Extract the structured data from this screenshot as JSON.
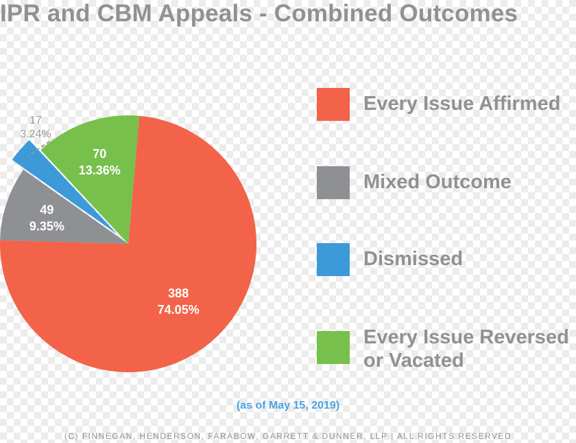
{
  "chart_data": {
    "type": "pie",
    "title": "IPR and CBM Appeals - Combined Outcomes",
    "slices": [
      {
        "name": "Every Issue Affirmed",
        "value": 388,
        "percent": "74.05%",
        "color": "#f26349"
      },
      {
        "name": "Mixed Outcome",
        "value": 49,
        "percent": "9.35%",
        "color": "#8e9093"
      },
      {
        "name": "Dismissed",
        "value": 17,
        "percent": "3.24%",
        "color": "#3c9ad8"
      },
      {
        "name": "Every Issue Reversed or Vacated",
        "value": 70,
        "percent": "13.36%",
        "color": "#77c04b"
      }
    ],
    "legend": [
      {
        "label_lines": [
          "Every Issue Affirmed"
        ],
        "color": "#f26349"
      },
      {
        "label_lines": [
          "Mixed Outcome"
        ],
        "color": "#8e9093"
      },
      {
        "label_lines": [
          "Dismissed"
        ],
        "color": "#3c9ad8"
      },
      {
        "label_lines": [
          "Every Issue Reversed",
          "or Vacated"
        ],
        "color": "#77c04b"
      }
    ],
    "legend_placement": "right",
    "note": "(as of May 15, 2019)"
  },
  "footer": "(C) FINNEGAN, HENDERSON, FARABOW, GARRETT & DUNNER, LLP | ALL RIGHTS RESERVED"
}
